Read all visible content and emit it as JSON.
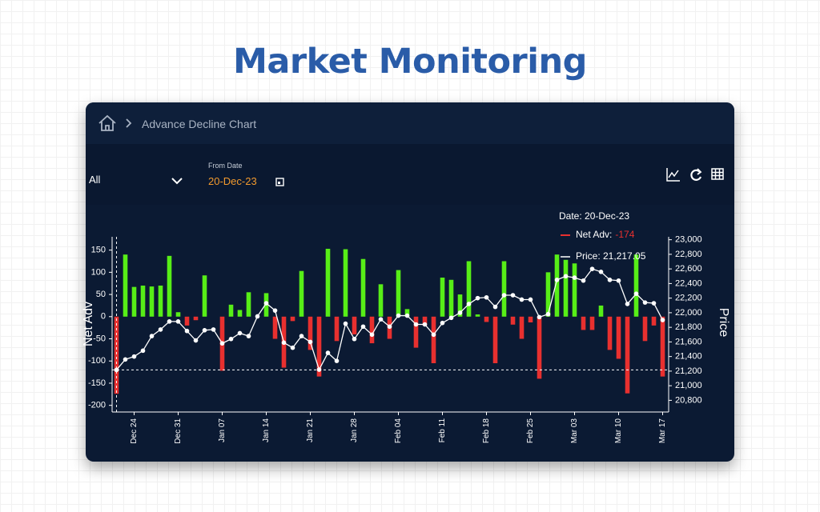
{
  "page_title": "Market Monitoring",
  "breadcrumb": "Advance Decline Chart",
  "filter": "All",
  "from_date_label": "From Date",
  "from_date": "20-Dec-23",
  "chart_data": {
    "type": "combo",
    "categories": [
      null,
      null,
      "Dec 24",
      null,
      null,
      null,
      null,
      "Dec 31",
      null,
      null,
      null,
      null,
      "Jan 07",
      null,
      null,
      null,
      null,
      "Jan 14",
      null,
      null,
      null,
      null,
      "Jan 21",
      null,
      null,
      null,
      null,
      "Jan 28",
      null,
      null,
      null,
      null,
      "Feb 04",
      null,
      null,
      null,
      null,
      "Feb 11",
      null,
      null,
      null,
      null,
      "Feb 18",
      null,
      null,
      null,
      null,
      "Feb 25",
      null,
      null,
      null,
      null,
      "Mar 03",
      null,
      null,
      null,
      null,
      "Mar 10",
      null,
      null,
      null,
      null,
      "Mar 17"
    ],
    "series": [
      {
        "type": "bar",
        "pos_color": "#57ee17",
        "neg_color": "#e8302f",
        "values": [
          -174,
          140,
          67,
          70,
          68,
          70,
          137,
          10,
          -20,
          -8,
          93,
          0,
          -122,
          27,
          15,
          55,
          0,
          53,
          -50,
          -115,
          -10,
          103,
          -75,
          -135,
          153,
          -55,
          152,
          -40,
          130,
          -60,
          73,
          -50,
          105,
          17,
          -70,
          -20,
          -105,
          88,
          83,
          50,
          125,
          5,
          -12,
          -105,
          125,
          -18,
          -50,
          -13,
          -140,
          100,
          140,
          128,
          120,
          -30,
          -30,
          25,
          -75,
          -95,
          -173,
          140,
          -55,
          -20,
          -135
        ]
      },
      {
        "type": "line",
        "axis": "y2",
        "color": "#ffffff",
        "values": [
          21217.05,
          21360,
          21400,
          21480,
          21680,
          21770,
          21880,
          21880,
          21750,
          21620,
          21760,
          21770,
          21580,
          21640,
          21720,
          21680,
          21950,
          22130,
          22030,
          21590,
          21520,
          21680,
          21600,
          21220,
          21450,
          21340,
          21850,
          21640,
          21810,
          21700,
          21910,
          21810,
          21960,
          21960,
          21840,
          21840,
          21700,
          21860,
          21930,
          22000,
          22120,
          22200,
          22210,
          22080,
          22240,
          22240,
          22180,
          22180,
          21940,
          21980,
          22450,
          22500,
          22480,
          22440,
          22600,
          22560,
          22450,
          22440,
          22120,
          22260,
          22140,
          22130,
          21900
        ]
      }
    ],
    "y_label": "Net Adv",
    "y2_label": "Price",
    "ylim": [
      -215,
      180
    ],
    "yticks": [
      -200,
      -150,
      -100,
      -50,
      0,
      50,
      100,
      150
    ],
    "y2lim": [
      20640,
      23040
    ],
    "y2ticks": [
      {
        "value": 20800,
        "label": "20,800"
      },
      {
        "value": 21000,
        "label": "21,000"
      },
      {
        "value": 21200,
        "label": "21,200"
      },
      {
        "value": 21400,
        "label": "21,400"
      },
      {
        "value": 21600,
        "label": "21,600"
      },
      {
        "value": 21800,
        "label": "21,800"
      },
      {
        "value": 22000,
        "label": "22,000"
      },
      {
        "value": 22200,
        "label": "22,200"
      },
      {
        "value": 22400,
        "label": "22,400"
      },
      {
        "value": 22600,
        "label": "22,600"
      },
      {
        "value": 22800,
        "label": "22,800"
      },
      {
        "value": 23000,
        "label": "23,000"
      }
    ],
    "tooltip": {
      "date": "Date: 20-Dec-23",
      "net_adv_label": "Net Adv:",
      "net_adv_value": "-174",
      "price": "Price: 21,217.05"
    }
  }
}
